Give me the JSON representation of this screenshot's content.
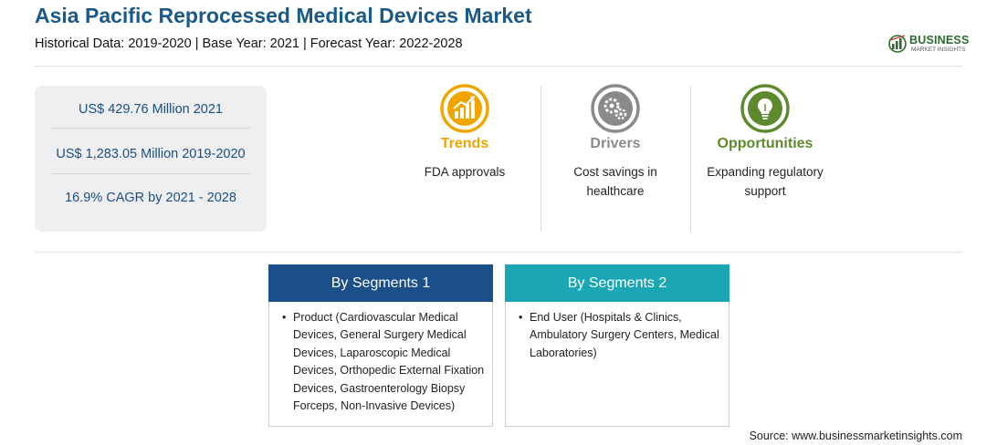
{
  "header": {
    "title": "Asia Pacific Reprocessed Medical Devices Market",
    "subtitle": "Historical Data: 2019-2020 | Base Year: 2021 | Forecast Year: 2022-2028"
  },
  "logo": {
    "name": "BUSINESS",
    "tagline": "MARKET INSIGHTS",
    "color": "#2f6b30"
  },
  "stats": [
    "US$ 429.76 Million 2021",
    "US$ 1,283.05 Million 2019-2020",
    "16.9% CAGR by 2021 - 2028"
  ],
  "factors": {
    "trends": {
      "label": "Trends",
      "text": "FDA approvals",
      "color": "#f0a500",
      "icon": "chart-growth-icon"
    },
    "drivers": {
      "label": "Drivers",
      "text": "Cost savings in healthcare",
      "color": "#8a8a8a",
      "icon": "gears-icon"
    },
    "opportunities": {
      "label": "Opportunities",
      "text": "Expanding regulatory support",
      "color": "#5e8a2e",
      "icon": "lightbulb-icon"
    }
  },
  "segments": [
    {
      "title": "By Segments 1",
      "color": "#1a4f8a",
      "items": [
        "Product (Cardiovascular Medical Devices, General Surgery Medical Devices, Laparoscopic Medical Devices, Orthopedic External Fixation Devices, Gastroenterology Biopsy Forceps, Non-Invasive Devices)"
      ]
    },
    {
      "title": "By Segments 2",
      "color": "#1aa6b4",
      "items": [
        "End User (Hospitals & Clinics, Ambulatory Surgery Centers, Medical Laboratories)"
      ]
    }
  ],
  "source": "Source: www.businessmarketinsights.com"
}
